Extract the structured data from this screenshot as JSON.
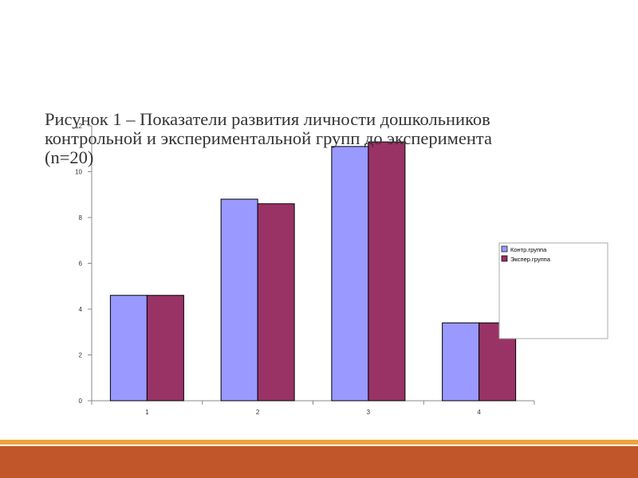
{
  "chart_data": {
    "type": "bar",
    "title": "Рисунок 1 – Показатели развития личности дошкольников\nконтрольной и экспериментальной групп до эксперимента\n(n=20)",
    "categories": [
      "1",
      "2",
      "3",
      "4"
    ],
    "series": [
      {
        "name": "Контр.группа",
        "values": [
          4.6,
          8.8,
          11.1,
          3.4
        ],
        "color": "#9999ff"
      },
      {
        "name": "Экспер.группа",
        "values": [
          4.6,
          8.6,
          11.3,
          3.4
        ],
        "color": "#993366"
      }
    ],
    "ylim": [
      0,
      12
    ],
    "yticks": [
      "0",
      "2",
      "4",
      "6",
      "8",
      "10",
      "12"
    ],
    "grid": false,
    "legend_position": "right"
  },
  "colors": {
    "footer_band": "#c0562a",
    "footer_line": "#f0a23a"
  }
}
